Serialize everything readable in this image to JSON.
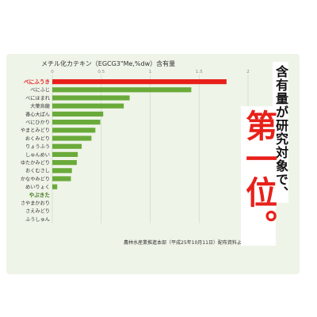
{
  "chart_data": {
    "type": "bar",
    "orientation": "horizontal",
    "title": "メチル化カテキン（EGCG3\"Me,%dw）含有量",
    "xlim": [
      0,
      2
    ],
    "xticks": [
      "0",
      "0.5",
      "1",
      "1.5",
      "2"
    ],
    "categories": [
      "べにふうき",
      "べにふじ",
      "べにほまれ",
      "大葉烏龍",
      "香心大ぱん",
      "べにひかり",
      "やまとみどり",
      "おくみどり",
      "りょうふう",
      "しゅんめい",
      "ゆたかみどり",
      "おくむさし",
      "かなやみどり",
      "めいりょく",
      "やぶきた",
      "さやまかおり",
      "さえみどり",
      "ふうしゅん"
    ],
    "values": [
      1.78,
      1.42,
      0.79,
      0.73,
      0.52,
      0.49,
      0.44,
      0.4,
      0.3,
      0.26,
      0.25,
      0.2,
      0.19,
      0.05,
      0,
      0,
      0,
      0
    ],
    "highlight_index": 0,
    "emphasis_index": 14,
    "grid": true,
    "source": "農林水産業推進本部（平成25年10月11日）配布資料より",
    "colors": {
      "bar": "#6aaa3a",
      "highlight": "#e8201a",
      "emphasis_label": "#4a7a20",
      "grid": "#c9d6bf",
      "text": "#333333"
    }
  },
  "headline": {
    "claim": "含有量が研究対象で、",
    "rank": "第一位。"
  }
}
